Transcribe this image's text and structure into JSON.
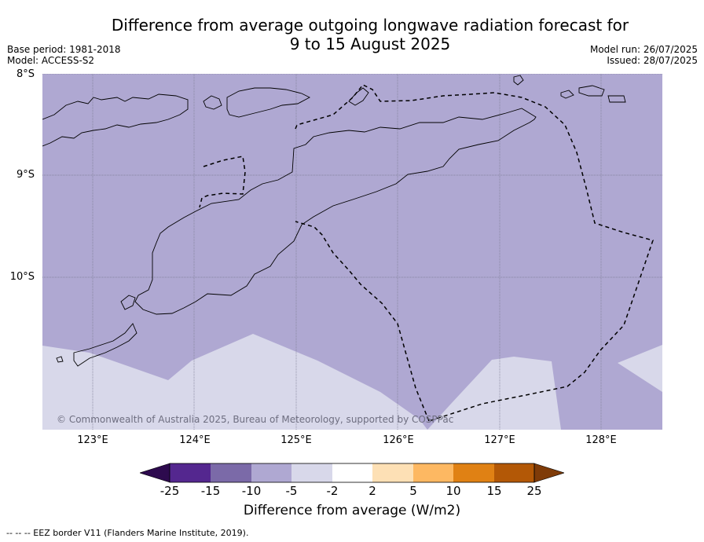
{
  "title_line1": "Difference from average outgoing longwave radiation forecast for",
  "title_line2": "9 to 15 August 2025",
  "base_period": "Base period: 1981-2018",
  "model": "Model: ACCESS-S2",
  "model_run": "Model run: 26/07/2025",
  "issued": "Issued: 28/07/2025",
  "lat_labels": [
    "8°S",
    "9°S",
    "10°S"
  ],
  "lon_labels": [
    "123°E",
    "124°E",
    "125°E",
    "126°E",
    "127°E",
    "128°E"
  ],
  "copyright": "© Commonwealth of Australia 2025, Bureau of Meteorology, supported by COSPPac",
  "colorbar": {
    "ticks": [
      "-25",
      "-15",
      "-10",
      "-5",
      "-2",
      "2",
      "5",
      "10",
      "15",
      "25"
    ],
    "colors": [
      "#2d0a4e",
      "#54278f",
      "#7b6aa8",
      "#afa8d2",
      "#d8d8ea",
      "#ffffff",
      "#fde0b5",
      "#fdb862",
      "#e08114",
      "#b35806",
      "#7f3b08"
    ],
    "label": "Difference from average (W/m2)"
  },
  "map_fill": {
    "base": "#afa8d2",
    "lighter": "#d8d8ea"
  },
  "footnote": "--  --  -- EEZ border V11 (Flanders Marine Institute, 2019)."
}
